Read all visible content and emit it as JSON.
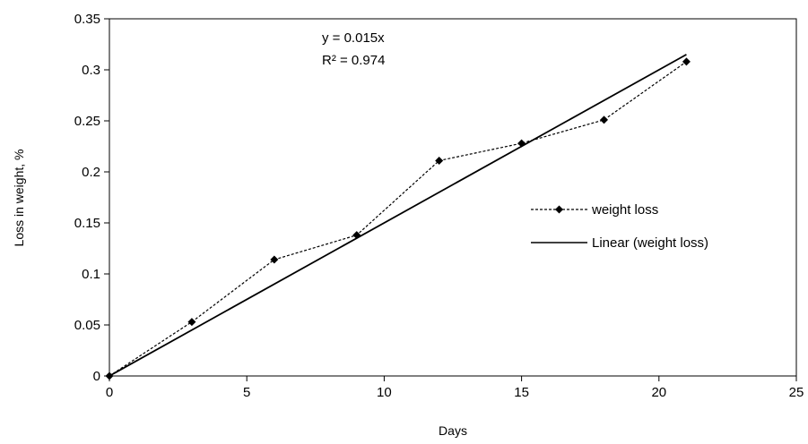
{
  "chart_data": {
    "type": "line",
    "title": "",
    "xlabel": "Days",
    "ylabel": "Loss in weight, %",
    "xlim": [
      0,
      25
    ],
    "ylim": [
      0,
      0.35
    ],
    "x_ticks": [
      0,
      5,
      10,
      15,
      20,
      25
    ],
    "y_ticks": [
      0,
      0.05,
      0.1,
      0.15,
      0.2,
      0.25,
      0.3,
      0.35
    ],
    "x_tick_labels": [
      "0",
      "5",
      "10",
      "15",
      "20",
      "25"
    ],
    "y_tick_labels": [
      "0",
      "0.05",
      "0.1",
      "0.15",
      "0.2",
      "0.25",
      "0.3",
      "0.35"
    ],
    "grid": false,
    "legend_position": "right",
    "series": [
      {
        "name": "weight loss",
        "style": "dashed-with-diamond-markers",
        "color": "#000000",
        "x": [
          0,
          3,
          6,
          9,
          12,
          15,
          18,
          21
        ],
        "y": [
          0,
          0.053,
          0.114,
          0.138,
          0.211,
          0.228,
          0.251,
          0.308
        ]
      },
      {
        "name": "Linear (weight loss)",
        "style": "solid",
        "color": "#000000",
        "slope": 0.015,
        "x": [
          0,
          21
        ],
        "y": [
          0,
          0.315
        ]
      }
    ],
    "annotations": {
      "equation": "y = 0.015x",
      "r_squared": "R² = 0.974"
    }
  }
}
